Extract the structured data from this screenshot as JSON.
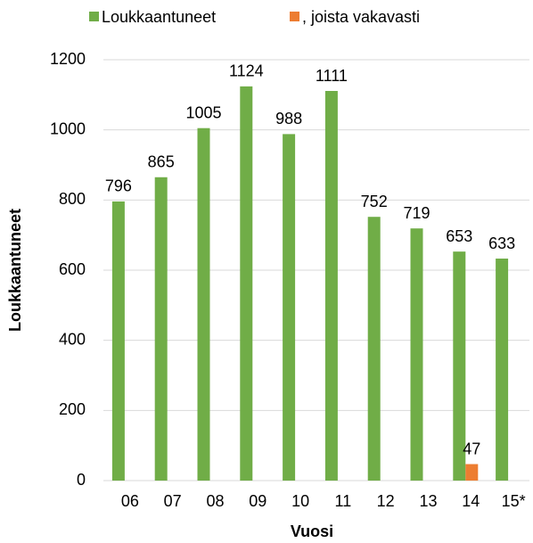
{
  "chart_data": {
    "type": "bar",
    "categories": [
      "06",
      "07",
      "08",
      "09",
      "10",
      "11",
      "12",
      "13",
      "14",
      "15*"
    ],
    "series": [
      {
        "name": "Loukkaantuneet",
        "color": "#70ad47",
        "values": [
          796,
          865,
          1005,
          1124,
          988,
          1111,
          752,
          719,
          653,
          633
        ]
      },
      {
        "name": ", joista vakavasti",
        "color": "#ed7d31",
        "values": [
          null,
          null,
          null,
          null,
          null,
          null,
          null,
          null,
          47,
          null
        ]
      }
    ],
    "xlabel": "Vuosi",
    "ylabel": "Loukkaantuneet",
    "ylim": [
      0,
      1200
    ],
    "yticks": [
      0,
      200,
      400,
      600,
      800,
      1000,
      1200
    ],
    "grid": true,
    "legend": "top"
  }
}
